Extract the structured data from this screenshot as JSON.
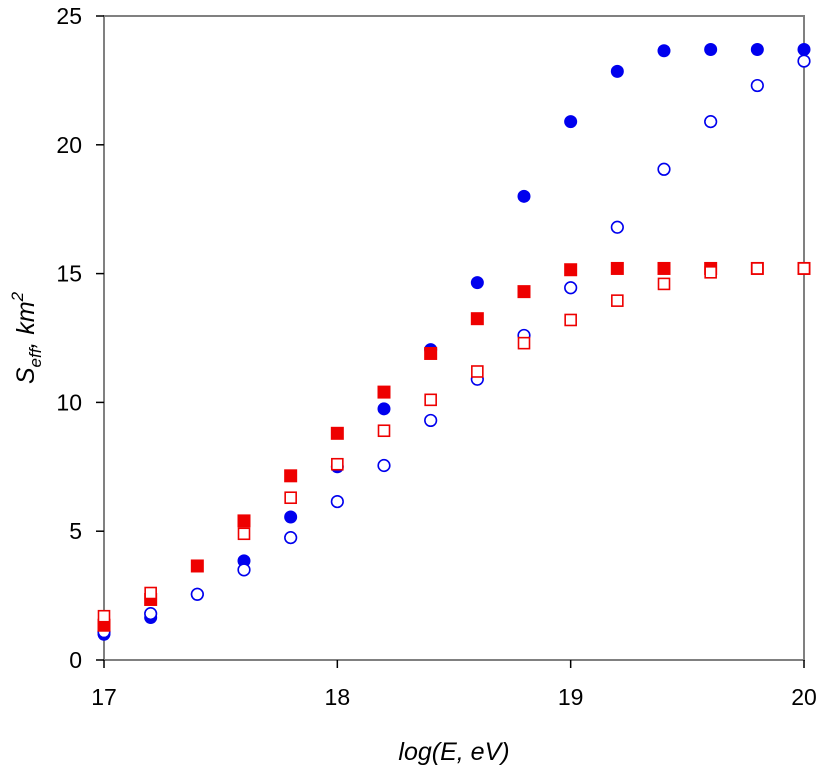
{
  "chart_data": {
    "type": "scatter",
    "title": "",
    "xlabel": "log(E, eV)",
    "ylabel": {
      "base": "S",
      "sub": "eff",
      "sep": ", ",
      "unit": "km",
      "sup": "2"
    },
    "xlim": [
      17,
      20
    ],
    "ylim": [
      0,
      25
    ],
    "xticks": [
      "17",
      "18",
      "19",
      "20"
    ],
    "yticks": [
      "0",
      "5",
      "10",
      "15",
      "20",
      "25"
    ],
    "grid": false,
    "legend": "none",
    "series": [
      {
        "marker": "circle",
        "filled": true,
        "color": "#0000ee",
        "x": [
          17.0,
          17.2,
          17.4,
          17.6,
          17.8,
          18.0,
          18.2,
          18.4,
          18.6,
          18.8,
          19.0,
          19.2,
          19.4,
          19.6,
          19.8,
          20.0
        ],
        "y": [
          1.0,
          1.65,
          2.55,
          3.85,
          5.55,
          7.5,
          9.75,
          12.05,
          14.65,
          18.0,
          20.9,
          22.85,
          23.65,
          23.7,
          23.7,
          23.7
        ]
      },
      {
        "marker": "circle",
        "filled": false,
        "color": "#0000ee",
        "x": [
          17.0,
          17.2,
          17.4,
          17.6,
          17.8,
          18.0,
          18.2,
          18.4,
          18.6,
          18.8,
          19.0,
          19.2,
          19.4,
          19.6,
          19.8,
          20.0
        ],
        "y": [
          1.1,
          1.8,
          2.55,
          3.5,
          4.75,
          6.15,
          7.55,
          9.3,
          10.9,
          12.6,
          14.45,
          16.8,
          19.05,
          20.9,
          22.3,
          23.25
        ]
      },
      {
        "marker": "square",
        "filled": true,
        "color": "#ee0000",
        "x": [
          17.0,
          17.2,
          17.4,
          17.6,
          17.8,
          18.0,
          18.2,
          18.4,
          18.6,
          18.8,
          19.0,
          19.2,
          19.4,
          19.6,
          19.8,
          20.0
        ],
        "y": [
          1.35,
          2.35,
          3.65,
          5.4,
          7.15,
          8.8,
          10.4,
          11.9,
          13.25,
          14.3,
          15.15,
          15.2,
          15.2,
          15.2,
          15.2,
          15.2
        ]
      },
      {
        "marker": "square",
        "filled": false,
        "color": "#ee0000",
        "x": [
          17.0,
          17.2,
          17.6,
          17.8,
          18.0,
          18.2,
          18.4,
          18.6,
          18.8,
          19.0,
          19.2,
          19.4,
          19.6,
          19.8,
          20.0
        ],
        "y": [
          1.7,
          2.6,
          4.9,
          6.3,
          7.6,
          8.9,
          10.1,
          11.2,
          12.3,
          13.2,
          13.95,
          14.6,
          15.05,
          15.2,
          15.2
        ]
      }
    ]
  }
}
